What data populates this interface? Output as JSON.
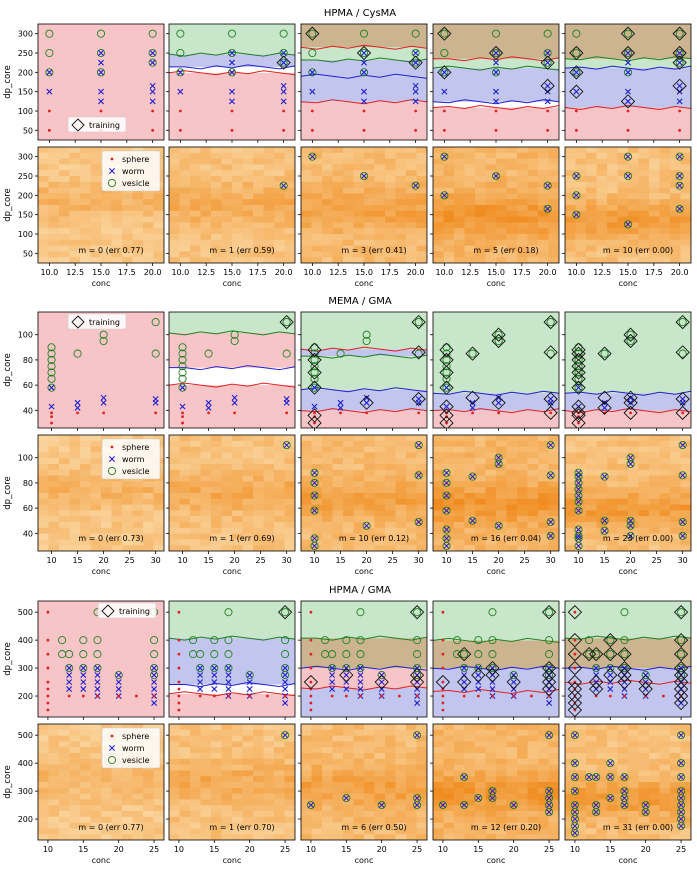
{
  "palette": {
    "sphere_region": "#f7c5c8",
    "worm_region": "#c2c6ee",
    "vesicle_region": "#c8e6c9",
    "mixed_region": "#cbb48f",
    "sphere_line": "#e02020",
    "worm_line": "#2020d0",
    "vesicle_line": "#208020",
    "heat_low": "#fff5d6",
    "heat_high": "#f08c1f"
  },
  "chart_data": [
    {
      "type": "scatter",
      "title": "HPMA / CysMA",
      "xlabel": "conc",
      "ylabel": "dp_core",
      "xlim": [
        8.9,
        21.1
      ],
      "ylim": [
        25,
        325
      ],
      "xticks": [
        "10.0",
        "12.5",
        "15.0",
        "17.5",
        "20.0"
      ],
      "xtick_values": [
        10,
        12.5,
        15,
        17.5,
        20
      ],
      "yticks": [
        "50",
        "100",
        "150",
        "200",
        "250",
        "300"
      ],
      "ytick_values": [
        50,
        100,
        150,
        200,
        250,
        300
      ],
      "legend_top": "training",
      "legend_bottom": [
        "sphere",
        "worm",
        "vesicle"
      ],
      "points": {
        "sphere": [
          [
            10,
            50
          ],
          [
            10,
            100
          ],
          [
            15,
            50
          ],
          [
            15,
            100
          ],
          [
            20,
            50
          ],
          [
            20,
            100
          ]
        ],
        "worm": [
          [
            10,
            150
          ],
          [
            15,
            125
          ],
          [
            15,
            150
          ],
          [
            20,
            125
          ],
          [
            20,
            150
          ],
          [
            20,
            165
          ],
          [
            10,
            200
          ],
          [
            15,
            200
          ],
          [
            15,
            225
          ],
          [
            15,
            250
          ],
          [
            20,
            225
          ],
          [
            20,
            250
          ]
        ],
        "vesicle": [
          [
            10,
            250
          ],
          [
            10,
            300
          ],
          [
            15,
            300
          ],
          [
            20,
            300
          ],
          [
            10,
            200
          ],
          [
            15,
            200
          ],
          [
            15,
            250
          ],
          [
            20,
            225
          ],
          [
            20,
            250
          ]
        ]
      },
      "panels": [
        {
          "label": "m = 0 (err 0.77)",
          "training": []
        },
        {
          "label": "m = 1 (err 0.59)",
          "training": [
            [
              20,
              225
            ]
          ]
        },
        {
          "label": "m = 3 (err 0.41)",
          "training": [
            [
              15,
              250
            ],
            [
              20,
              225
            ],
            [
              10,
              300
            ]
          ]
        },
        {
          "label": "m = 5 (err 0.18)",
          "training": [
            [
              15,
              250
            ],
            [
              20,
              225
            ],
            [
              10,
              200
            ],
            [
              20,
              165
            ],
            [
              10,
              300
            ]
          ]
        },
        {
          "label": "m = 10 (err 0.00)",
          "training": [
            [
              15,
              250
            ],
            [
              20,
              225
            ],
            [
              10,
              200
            ],
            [
              20,
              165
            ],
            [
              10,
              150
            ],
            [
              15,
              125
            ],
            [
              20,
              250
            ],
            [
              10,
              250
            ],
            [
              20,
              300
            ],
            [
              15,
              300
            ]
          ]
        }
      ]
    },
    {
      "type": "scatter",
      "title": "MEMA / GMA",
      "xlabel": "conc",
      "ylabel": "dp_core",
      "xlim": [
        7.4,
        31.6
      ],
      "ylim": [
        26,
        118
      ],
      "xticks": [
        "10",
        "15",
        "20",
        "25",
        "30"
      ],
      "xtick_values": [
        10,
        15,
        20,
        25,
        30
      ],
      "yticks": [
        "40",
        "60",
        "80",
        "100"
      ],
      "ytick_values": [
        40,
        60,
        80,
        100
      ],
      "legend_top": "training",
      "legend_bottom": [
        "sphere",
        "worm",
        "vesicle"
      ],
      "points": {
        "sphere": [
          [
            10,
            30
          ],
          [
            10,
            35
          ],
          [
            10,
            38
          ],
          [
            15,
            38
          ],
          [
            20,
            38
          ],
          [
            30,
            38
          ]
        ],
        "worm": [
          [
            10,
            43
          ],
          [
            15,
            42
          ],
          [
            15,
            46
          ],
          [
            20,
            46
          ],
          [
            20,
            50
          ],
          [
            30,
            46
          ],
          [
            30,
            49
          ],
          [
            10,
            58
          ]
        ],
        "vesicle": [
          [
            10,
            65
          ],
          [
            10,
            70
          ],
          [
            10,
            75
          ],
          [
            10,
            80
          ],
          [
            10,
            85
          ],
          [
            10,
            90
          ],
          [
            15,
            85
          ],
          [
            20,
            95
          ],
          [
            20,
            100
          ],
          [
            30,
            85
          ],
          [
            30,
            110
          ],
          [
            10,
            58
          ]
        ]
      },
      "panels": [
        {
          "label": "m = 0 (err 0.73)",
          "training": []
        },
        {
          "label": "m = 1 (err 0.69)",
          "training": [
            [
              30,
              110
            ]
          ]
        },
        {
          "label": "m = 10 (err 0.12)",
          "training": [
            [
              30,
              110
            ],
            [
              10,
              58
            ],
            [
              30,
              49
            ],
            [
              20,
              46
            ],
            [
              10,
              70
            ],
            [
              10,
              80
            ],
            [
              30,
              86
            ],
            [
              10,
              36
            ],
            [
              10,
              30
            ],
            [
              10,
              88
            ]
          ]
        },
        {
          "label": "m = 16 (err 0.04)",
          "training": [
            [
              30,
              110
            ],
            [
              10,
              58
            ],
            [
              30,
              49
            ],
            [
              20,
              46
            ],
            [
              10,
              70
            ],
            [
              10,
              80
            ],
            [
              30,
              86
            ],
            [
              10,
              36
            ],
            [
              10,
              30
            ],
            [
              10,
              88
            ],
            [
              15,
              85
            ],
            [
              20,
              95
            ],
            [
              20,
              100
            ],
            [
              15,
              50
            ],
            [
              30,
              38
            ],
            [
              10,
              43
            ]
          ]
        },
        {
          "label": "m = 23 (err 0.00)",
          "training": [
            [
              30,
              110
            ],
            [
              10,
              58
            ],
            [
              30,
              49
            ],
            [
              20,
              46
            ],
            [
              10,
              70
            ],
            [
              10,
              80
            ],
            [
              30,
              86
            ],
            [
              10,
              36
            ],
            [
              10,
              30
            ],
            [
              10,
              88
            ],
            [
              15,
              85
            ],
            [
              20,
              95
            ],
            [
              20,
              100
            ],
            [
              15,
              50
            ],
            [
              30,
              38
            ],
            [
              10,
              43
            ],
            [
              20,
              38
            ],
            [
              15,
              42
            ],
            [
              20,
              50
            ],
            [
              10,
              65
            ],
            [
              10,
              75
            ],
            [
              10,
              85
            ],
            [
              10,
              38
            ]
          ]
        }
      ]
    },
    {
      "type": "scatter",
      "title": "HPMA / GMA",
      "xlabel": "conc",
      "ylabel": "dp_core",
      "xlim": [
        8.6,
        26.4
      ],
      "ylim": [
        125,
        540
      ],
      "xticks": [
        "10",
        "15",
        "20",
        "25"
      ],
      "xtick_values": [
        10,
        15,
        20,
        25
      ],
      "yticks": [
        "200",
        "300",
        "400",
        "500"
      ],
      "ytick_values": [
        200,
        300,
        400,
        500
      ],
      "legend_top": "training",
      "legend_bottom": [
        "sphere",
        "worm",
        "vesicle"
      ],
      "points": {
        "sphere": [
          [
            10,
            150
          ],
          [
            10,
            175
          ],
          [
            10,
            200
          ],
          [
            10,
            225
          ],
          [
            10,
            250
          ],
          [
            10,
            300
          ],
          [
            10,
            350
          ],
          [
            10,
            400
          ],
          [
            10,
            500
          ],
          [
            13,
            200
          ],
          [
            15,
            200
          ],
          [
            17,
            200
          ],
          [
            20,
            200
          ],
          [
            22.5,
            200
          ],
          [
            25,
            200
          ]
        ],
        "worm": [
          [
            13,
            225
          ],
          [
            13,
            250
          ],
          [
            13,
            275
          ],
          [
            13,
            300
          ],
          [
            15,
            225
          ],
          [
            15,
            250
          ],
          [
            15,
            275
          ],
          [
            15,
            300
          ],
          [
            17,
            200
          ],
          [
            17,
            225
          ],
          [
            17,
            250
          ],
          [
            17,
            275
          ],
          [
            17,
            300
          ],
          [
            20,
            200
          ],
          [
            20,
            225
          ],
          [
            20,
            250
          ],
          [
            20,
            275
          ],
          [
            25,
            175
          ],
          [
            25,
            200
          ],
          [
            25,
            225
          ],
          [
            25,
            250
          ],
          [
            25,
            275
          ],
          [
            25,
            300
          ]
        ],
        "vesicle": [
          [
            12,
            350
          ],
          [
            12,
            400
          ],
          [
            13,
            300
          ],
          [
            13,
            350
          ],
          [
            15,
            300
          ],
          [
            15,
            350
          ],
          [
            15,
            400
          ],
          [
            17,
            300
          ],
          [
            17,
            350
          ],
          [
            17,
            400
          ],
          [
            17,
            500
          ],
          [
            20,
            275
          ],
          [
            25,
            275
          ],
          [
            25,
            300
          ],
          [
            25,
            350
          ],
          [
            25,
            400
          ],
          [
            25,
            500
          ]
        ]
      },
      "panels": [
        {
          "label": "m = 0 (err 0.77)",
          "training": []
        },
        {
          "label": "m = 1 (err 0.70)",
          "training": [
            [
              25,
              500
            ]
          ]
        },
        {
          "label": "m = 6 (err 0.50)",
          "training": [
            [
              25,
              500
            ],
            [
              10,
              250
            ],
            [
              15,
              275
            ],
            [
              20,
              250
            ],
            [
              25,
              275
            ],
            [
              25,
              250
            ]
          ]
        },
        {
          "label": "m = 12 (err 0.20)",
          "training": [
            [
              25,
              500
            ],
            [
              10,
              250
            ],
            [
              15,
              275
            ],
            [
              20,
              250
            ],
            [
              25,
              275
            ],
            [
              25,
              250
            ],
            [
              13,
              350
            ],
            [
              13,
              250
            ],
            [
              17,
              300
            ],
            [
              17,
              275
            ],
            [
              25,
              300
            ],
            [
              25,
              225
            ]
          ]
        },
        {
          "label": "m = 31 (err 0.00)",
          "training": [
            [
              25,
              500
            ],
            [
              10,
              250
            ],
            [
              15,
              275
            ],
            [
              20,
              250
            ],
            [
              25,
              275
            ],
            [
              25,
              250
            ],
            [
              13,
              350
            ],
            [
              13,
              250
            ],
            [
              17,
              300
            ],
            [
              17,
              275
            ],
            [
              25,
              300
            ],
            [
              25,
              225
            ],
            [
              10,
              150
            ],
            [
              10,
              175
            ],
            [
              10,
              200
            ],
            [
              10,
              225
            ],
            [
              10,
              300
            ],
            [
              10,
              350
            ],
            [
              10,
              400
            ],
            [
              10,
              500
            ],
            [
              12,
              350
            ],
            [
              13,
              225
            ],
            [
              15,
              350
            ],
            [
              15,
              400
            ],
            [
              17,
              350
            ],
            [
              17,
              250
            ],
            [
              20,
              225
            ],
            [
              25,
              175
            ],
            [
              25,
              200
            ],
            [
              25,
              350
            ],
            [
              25,
              400
            ]
          ]
        }
      ]
    }
  ]
}
